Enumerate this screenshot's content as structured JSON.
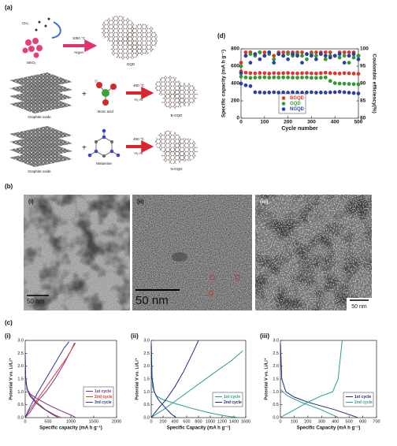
{
  "figure": {
    "labels": {
      "a": "(a)",
      "b": "(b)",
      "c": "(c)"
    },
    "schematic": {
      "ch4": "CH₄",
      "template": "MnO₂",
      "temp1": "1050 °C",
      "gas1": "Argon",
      "gqd": "GQD",
      "graphite1": "Graphite oxide",
      "boric": "Boric acid",
      "temp2": "400 °C",
      "gas2": "H₂-Ar",
      "bgqd": "B-GQD",
      "graphite2": "Graphite oxide",
      "melamine": "Melamine",
      "temp3": "400 °C",
      "gas3": "H₂-Ar",
      "ngqd": "N-GQD"
    },
    "tem": [
      {
        "label": "(i)",
        "scale": "50 nm"
      },
      {
        "label": "(ii)",
        "scale": "50 nm"
      },
      {
        "label": "(iii)",
        "scale": "50 nm"
      }
    ]
  },
  "chart_data": [
    {
      "type": "scatter",
      "panel": "(d)",
      "x_label": "Cycle number",
      "y_label": "Specific capacity (mA h g⁻¹)",
      "y2_label": "Coulombic efficiency(%)",
      "x": [
        0,
        20,
        40,
        60,
        80,
        100,
        120,
        140,
        160,
        180,
        200,
        220,
        240,
        260,
        280,
        300,
        320,
        340,
        360,
        380,
        400,
        420,
        440,
        460,
        480,
        500
      ],
      "xlim": [
        0,
        500
      ],
      "xticks": [
        0,
        100,
        200,
        300,
        400,
        500
      ],
      "ylim": [
        0,
        800
      ],
      "yticks": [
        0,
        200,
        400,
        600,
        800
      ],
      "y2lim": [
        80,
        100
      ],
      "y2ticks": [
        80,
        85,
        90,
        95,
        100
      ],
      "legend": "lower left",
      "series": [
        {
          "name": "BGQD",
          "color": "#e8332a",
          "values": [
            540,
            525,
            520,
            518,
            522,
            520,
            515,
            520,
            518,
            520,
            522,
            519,
            517,
            520,
            521,
            518,
            516,
            520,
            525,
            520,
            518,
            515,
            520,
            518,
            515,
            512
          ],
          "efficiency": [
            96,
            99,
            99,
            98.5,
            99,
            99,
            99,
            98,
            99,
            99,
            99,
            99,
            99,
            99,
            98.5,
            99,
            99,
            99,
            99,
            99,
            98,
            99,
            99,
            99,
            99,
            98
          ]
        },
        {
          "name": "GQD",
          "color": "#2ca02c",
          "values": [
            480,
            470,
            465,
            468,
            470,
            472,
            468,
            470,
            469,
            471,
            470,
            468,
            467,
            469,
            470,
            466,
            465,
            468,
            470,
            430,
            405,
            400,
            398,
            395,
            393,
            390
          ],
          "efficiency": [
            95,
            98,
            98.5,
            98,
            99,
            98,
            98.5,
            97,
            98.5,
            98,
            98.5,
            98,
            98.5,
            98,
            97,
            98.5,
            98,
            98.5,
            97,
            98,
            98,
            97.5,
            98,
            96,
            97.5,
            98
          ]
        },
        {
          "name": "NGQD",
          "color": "#2b3fb0",
          "values": [
            400,
            380,
            370,
            300,
            298,
            295,
            297,
            300,
            296,
            298,
            295,
            300,
            297,
            296,
            298,
            300,
            295,
            297,
            296,
            298,
            300,
            305,
            300,
            295,
            290,
            285
          ],
          "efficiency": [
            93,
            98,
            96,
            98.5,
            97,
            98,
            99,
            96,
            98.5,
            98,
            97,
            98.5,
            98,
            96,
            98.5,
            98,
            97,
            98.5,
            98,
            97.5,
            98,
            98.5,
            96,
            98,
            98.5,
            97
          ]
        }
      ]
    },
    {
      "type": "line",
      "panel": "(i)",
      "x_label": "Specific capacity (mA h g⁻¹)",
      "y_label": "Potential V vs. Li/Li⁺",
      "xlim": [
        0,
        2000
      ],
      "xticks": [
        0,
        500,
        1000,
        1500,
        2000
      ],
      "ylim": [
        0,
        3
      ],
      "yticks": [
        {
          "value": 0,
          "label": "0.0"
        },
        0.5,
        {
          "value": 1,
          "label": "1.0"
        },
        1.5,
        {
          "value": 2,
          "label": "2.0"
        },
        2.5,
        {
          "value": 3,
          "label": "3.0"
        }
      ],
      "legend": "lower right",
      "series": [
        {
          "name": "1st cycle",
          "color": "#7b2d8e",
          "x": [
            0,
            20,
            60,
            120,
            250,
            500,
            800,
            1000,
            1100,
            null,
            0,
            100,
            250,
            450,
            650,
            850,
            1000,
            1080
          ],
          "values": [
            1.85,
            1.3,
            1.05,
            0.9,
            0.75,
            0.5,
            0.25,
            0.1,
            0.01,
            null,
            0.01,
            0.2,
            0.6,
            1.0,
            1.5,
            2.1,
            2.6,
            2.9
          ]
        },
        {
          "name": "2nd cycle",
          "color": "#e03a2a",
          "x": [
            0,
            10,
            40,
            100,
            250,
            450,
            650,
            780,
            null,
            0,
            100,
            300,
            500,
            700,
            900,
            1050,
            1100
          ],
          "values": [
            2.4,
            1.5,
            1.1,
            0.9,
            0.6,
            0.3,
            0.1,
            0.01,
            null,
            0.01,
            0.3,
            0.8,
            1.3,
            1.8,
            2.3,
            2.75,
            2.9
          ]
        },
        {
          "name": "3rd cycle",
          "color": "#2a3a9a",
          "x": [
            0,
            10,
            40,
            100,
            250,
            400,
            600,
            720,
            null,
            0,
            100,
            250,
            450,
            650,
            850,
            960
          ],
          "values": [
            2.5,
            1.6,
            1.1,
            0.85,
            0.55,
            0.35,
            0.12,
            0.01,
            null,
            0.01,
            0.4,
            0.9,
            1.5,
            2.1,
            2.7,
            2.95
          ]
        }
      ]
    },
    {
      "type": "line",
      "panel": "(ii)",
      "x_label": "Specific Capacity (mA h g⁻¹)",
      "y_label": "Potential V vs. Li/Li⁺",
      "xlim": [
        0,
        1600
      ],
      "xticks": [
        0,
        200,
        400,
        600,
        800,
        1000,
        1200,
        1400,
        1600
      ],
      "ylim": [
        0,
        3
      ],
      "yticks": [
        {
          "value": 0,
          "label": "0.0"
        },
        0.5,
        {
          "value": 1,
          "label": "1.0"
        },
        1.5,
        {
          "value": 2,
          "label": "2.0"
        },
        2.5,
        {
          "value": 3,
          "label": "3.0"
        }
      ],
      "legend": "lower right",
      "series": [
        {
          "name": "1st cycle",
          "color": "#2a9d8f",
          "x": [
            0,
            20,
            80,
            200,
            400,
            700,
            1000,
            1300,
            1450,
            null,
            0,
            200,
            500,
            800,
            1100,
            1350,
            1550
          ],
          "values": [
            2.9,
            1.2,
            0.85,
            0.7,
            0.55,
            0.35,
            0.18,
            0.05,
            0.01,
            null,
            0.01,
            0.3,
            0.8,
            1.3,
            1.8,
            2.2,
            2.6
          ]
        },
        {
          "name": "2nd cycle",
          "color": "#1f2a80",
          "x": [
            0,
            10,
            50,
            120,
            250,
            350,
            420,
            null,
            0,
            100,
            250,
            400,
            550,
            700,
            800
          ],
          "values": [
            2.9,
            1.6,
            1.0,
            0.7,
            0.35,
            0.12,
            0.01,
            null,
            0.01,
            0.3,
            0.7,
            1.2,
            1.8,
            2.5,
            3.0
          ]
        }
      ]
    },
    {
      "type": "line",
      "panel": "(iii)",
      "x_label": "Specific Capacity (mA h g⁻¹)",
      "y_label": "Potential V vs. Li/Li⁺",
      "xlim": [
        0,
        700
      ],
      "xticks": [
        0,
        100,
        200,
        300,
        400,
        500,
        600,
        700
      ],
      "ylim": [
        0,
        3
      ],
      "yticks": [
        {
          "value": 0,
          "label": "0.0"
        },
        0.5,
        {
          "value": 1,
          "label": "1.0"
        },
        1.5,
        {
          "value": 2,
          "label": "2.0"
        },
        2.5,
        {
          "value": 3,
          "label": "3.0"
        }
      ],
      "legend": "lower right",
      "series": [
        {
          "name": "1st cycle",
          "color": "#1f2a80",
          "x": [
            0,
            10,
            40,
            100,
            200,
            300,
            400,
            500,
            560
          ],
          "values": [
            2.9,
            1.5,
            1.0,
            0.8,
            0.6,
            0.45,
            0.3,
            0.12,
            0.01
          ]
        },
        {
          "name": "2nd cycle",
          "color": "#2a9d8f",
          "x": [
            0,
            50,
            150,
            300,
            420,
            null,
            0,
            100,
            200,
            300,
            380,
            420,
            440,
            450
          ],
          "values": [
            1.1,
            0.85,
            0.6,
            0.3,
            0.01,
            null,
            0.01,
            0.3,
            0.6,
            0.85,
            1.0,
            1.5,
            2.5,
            3.0
          ]
        }
      ]
    }
  ]
}
